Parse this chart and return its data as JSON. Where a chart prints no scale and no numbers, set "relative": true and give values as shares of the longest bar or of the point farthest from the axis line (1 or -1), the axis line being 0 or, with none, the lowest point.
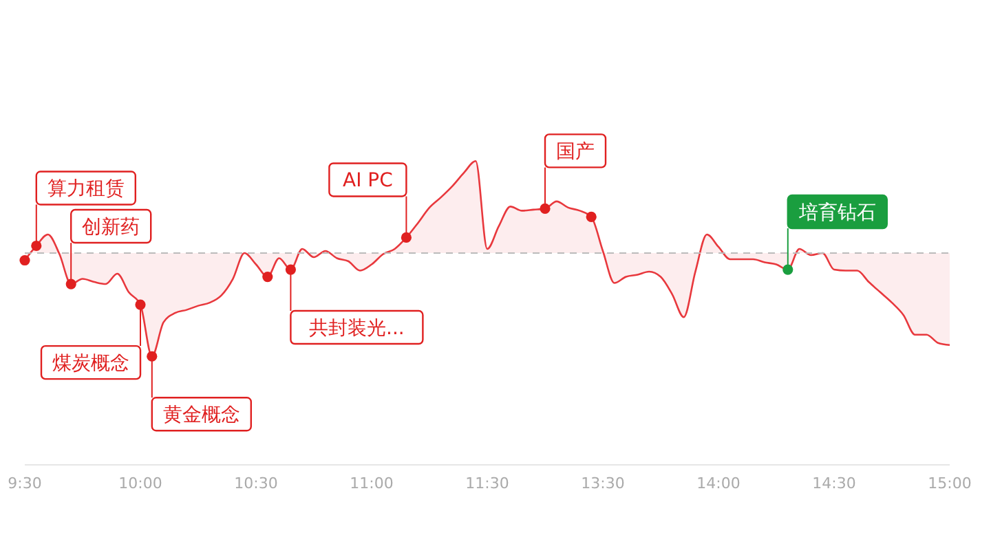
{
  "chart_data": {
    "type": "area",
    "relative": true,
    "categories": [
      "9:30",
      null,
      null,
      null,
      null,
      null,
      null,
      null,
      null,
      null,
      "10:00",
      null,
      null,
      null,
      null,
      null,
      null,
      null,
      null,
      null,
      "10:30",
      null,
      null,
      null,
      null,
      null,
      null,
      null,
      null,
      null,
      "11:00",
      null,
      null,
      null,
      null,
      null,
      null,
      null,
      null,
      null,
      "11:30",
      null,
      null,
      null,
      null,
      null,
      null,
      null,
      null,
      null,
      "13:30",
      null,
      null,
      null,
      null,
      null,
      null,
      null,
      null,
      null,
      "14:00",
      null,
      null,
      null,
      null,
      null,
      null,
      null,
      null,
      null,
      "14:30",
      null,
      null,
      null,
      null,
      null,
      null,
      null,
      null,
      null,
      "15:00"
    ],
    "series": [
      {
        "color": "#e8383d",
        "values": [
          -0.07,
          0.07,
          0.18,
          -0.01,
          -0.3,
          -0.25,
          -0.28,
          -0.3,
          -0.2,
          -0.38,
          -0.5,
          -1,
          -0.67,
          -0.58,
          -0.55,
          -0.51,
          -0.48,
          -0.41,
          -0.25,
          0,
          -0.11,
          -0.23,
          -0.05,
          -0.16,
          0.04,
          -0.04,
          0.02,
          -0.05,
          -0.08,
          -0.17,
          -0.11,
          -0.01,
          0.04,
          0.15,
          0.29,
          0.44,
          0.54,
          0.65,
          0.78,
          0.89,
          0.04,
          0.26,
          0.45,
          0.41,
          0.42,
          0.43,
          0.5,
          0.44,
          0.41,
          0.35,
          0.02,
          -0.29,
          -0.23,
          -0.21,
          -0.18,
          -0.23,
          -0.4,
          -0.62,
          -0.18,
          0.18,
          0.06,
          -0.06,
          -0.06,
          -0.06,
          -0.09,
          -0.11,
          -0.16,
          0.04,
          -0.02,
          0,
          -0.16,
          -0.17,
          -0.17,
          -0.28,
          -0.38,
          -0.48,
          -0.6,
          -0.79,
          -0.79,
          -0.87,
          -0.89
        ]
      },
      {
        "type": "scatter",
        "values": [
          null,
          0.07,
          null,
          null,
          -0.3,
          null,
          null,
          null,
          null,
          null,
          -0.5,
          -1,
          null,
          null,
          null,
          null,
          null,
          null,
          null,
          null,
          null,
          null,
          null,
          -0.16,
          null,
          null,
          null,
          null,
          null,
          null,
          null,
          null,
          null,
          0.15,
          null,
          null,
          null,
          null,
          null,
          null,
          null,
          null,
          null,
          null,
          null,
          0.43,
          null,
          null,
          null,
          null,
          null,
          null,
          null,
          null,
          null,
          null,
          null,
          null,
          null,
          null,
          null,
          null,
          null,
          null,
          null,
          null,
          -0.16,
          null,
          null,
          null,
          null,
          null,
          null,
          null,
          null,
          null,
          null,
          null,
          null,
          null,
          null
        ],
        "marker": "circle",
        "colors": [
          null,
          "#e02020",
          null,
          null,
          "#e02020",
          null,
          null,
          null,
          null,
          null,
          "#e02020",
          "#e02020",
          null,
          null,
          null,
          null,
          null,
          null,
          null,
          null,
          null,
          null,
          null,
          "#e02020",
          null,
          null,
          null,
          null,
          null,
          null,
          null,
          null,
          null,
          "#e02020",
          null,
          null,
          null,
          null,
          null,
          null,
          null,
          null,
          null,
          null,
          null,
          "#e02020",
          null,
          null,
          null,
          null,
          null,
          null,
          null,
          null,
          null,
          null,
          null,
          null,
          null,
          null,
          null,
          null,
          null,
          null,
          null,
          null,
          "#1a9e3f",
          null,
          null,
          null,
          null,
          null,
          null,
          null,
          null,
          null,
          null,
          null,
          null,
          null,
          null
        ]
      },
      {
        "type": "scatter",
        "color": "#e02020",
        "marker": "circle",
        "values": [
          -0.07,
          null,
          null,
          null,
          null,
          null,
          null,
          null,
          null,
          null,
          null,
          null,
          null,
          null,
          null,
          null,
          null,
          null,
          null,
          null,
          null,
          -0.23,
          null,
          null,
          null,
          null,
          null,
          null,
          null,
          null,
          null,
          null,
          null,
          null,
          null,
          null,
          null,
          null,
          null,
          null,
          null,
          null,
          null,
          null,
          null,
          null,
          null,
          null,
          null,
          0.35,
          null,
          null,
          null,
          null,
          null,
          null,
          null,
          null,
          null,
          null,
          null,
          null,
          null,
          null,
          null,
          null,
          null,
          null,
          null,
          null,
          null,
          null,
          null,
          null,
          null,
          null,
          null,
          null,
          null,
          null,
          null
        ]
      }
    ],
    "annotations": [
      "算力租赁",
      "创新药",
      "煤炭概念",
      "黄金概念",
      "共封装光...",
      "AI PC",
      "国产",
      "培育钻石"
    ],
    "ref_lines": [
      {
        "axis": "y",
        "value": 0,
        "color": "#bbbbbb",
        "line_style": "dashed"
      }
    ]
  }
}
